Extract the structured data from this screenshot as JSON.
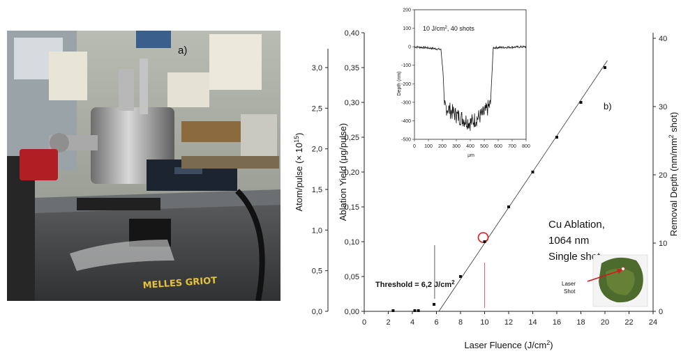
{
  "panel_a": {
    "label": "a)",
    "brand_text": "MELLES GRIOT"
  },
  "panel_b": {
    "label": "b)",
    "annotation_lines": [
      "Cu Ablation,",
      "1064 nm",
      "Single shot"
    ],
    "threshold": {
      "prefix": "Threshold = 6,2 J/cm",
      "sup": "2"
    },
    "sample_label_lines": [
      "Laser",
      "Shot"
    ]
  },
  "chart_data": [
    {
      "type": "scatter",
      "xlabel": {
        "text": "Laser Fluence (J/cm",
        "sup": "2",
        "suffix": ")"
      },
      "ylabel": "Ablation Yield (μg/pulse)",
      "ylabel_left": {
        "text": "Atom/pulse (× 10",
        "sup": "15",
        "suffix": ")"
      },
      "ylabel_right": {
        "text": "Removal Depth (nm/mm",
        "sup": "2",
        "suffix": " shot)"
      },
      "xlim": [
        0,
        24
      ],
      "ylim": [
        0,
        0.4
      ],
      "x_ticks": [
        "0",
        "2",
        "4",
        "6",
        "8",
        "10",
        "12",
        "14",
        "16",
        "18",
        "20",
        "22",
        "24"
      ],
      "y_ticks": [
        "0,00",
        "0,05",
        "0,10",
        "0,15",
        "0,20",
        "0,25",
        "0,30",
        "0,35",
        "0,40"
      ],
      "y_ticks_left": [
        "0,0",
        "0,5",
        "1,0",
        "1,5",
        "2,0",
        "2,5",
        "3,0"
      ],
      "y_ticks_right": [
        "0",
        "10",
        "20",
        "30",
        "40"
      ],
      "points": [
        {
          "x": 2.4,
          "y": 0.001
        },
        {
          "x": 4.2,
          "y": 0.001
        },
        {
          "x": 4.5,
          "y": 0.001
        },
        {
          "x": 5.8,
          "y": 0.01
        },
        {
          "x": 8,
          "y": 0.05
        },
        {
          "x": 10,
          "y": 0.1
        },
        {
          "x": 12,
          "y": 0.15
        },
        {
          "x": 14,
          "y": 0.2
        },
        {
          "x": 16,
          "y": 0.25
        },
        {
          "x": 18,
          "y": 0.3
        },
        {
          "x": 20,
          "y": 0.35
        }
      ],
      "fit_line": [
        {
          "x": 6.2,
          "y": 0
        },
        {
          "x": 20.2,
          "y": 0.36
        }
      ],
      "highlighted_point": {
        "x": 10,
        "y": 0.1
      }
    },
    {
      "type": "line",
      "title": {
        "text": "10 J/cm",
        "sup": "2",
        "suffix": ", 40 shots"
      },
      "xlabel": "μm",
      "ylabel": "Depth (nm)",
      "xlim": [
        0,
        800
      ],
      "ylim": [
        -500,
        200
      ],
      "x_ticks": [
        "0",
        "100",
        "200",
        "300",
        "400",
        "500",
        "600",
        "700",
        "800"
      ],
      "y_ticks": [
        "200",
        "100",
        "0",
        "-100",
        "-200",
        "-300",
        "-400",
        "-500"
      ],
      "profile": [
        {
          "x": 0,
          "y": 0
        },
        {
          "x": 80,
          "y": -5
        },
        {
          "x": 150,
          "y": -10
        },
        {
          "x": 190,
          "y": -15
        },
        {
          "x": 205,
          "y": -140
        },
        {
          "x": 215,
          "y": -320
        },
        {
          "x": 300,
          "y": -370
        },
        {
          "x": 400,
          "y": -410
        },
        {
          "x": 500,
          "y": -360
        },
        {
          "x": 545,
          "y": -310
        },
        {
          "x": 555,
          "y": -150
        },
        {
          "x": 565,
          "y": -5
        },
        {
          "x": 800,
          "y": 0
        }
      ]
    }
  ]
}
